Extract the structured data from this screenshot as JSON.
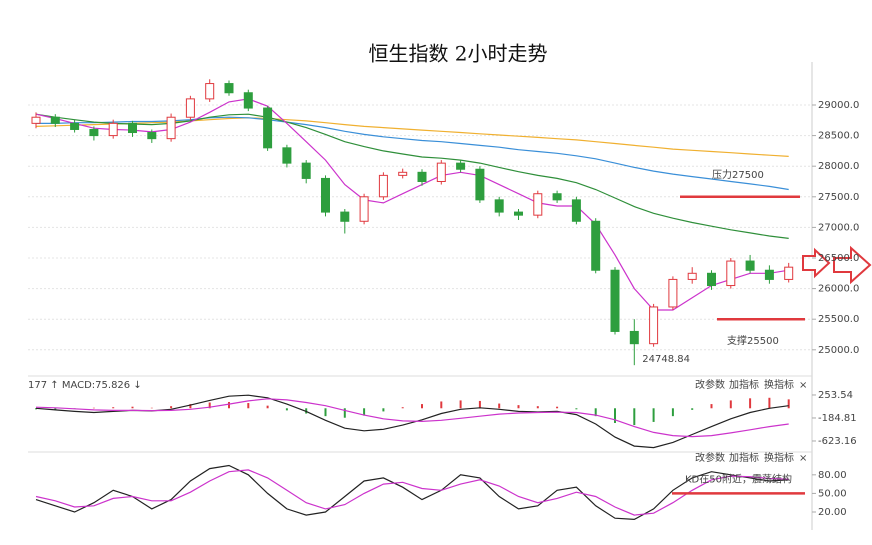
{
  "chart_data": [
    {
      "type": "candlestick",
      "title": "恒生指数 2小时走势",
      "open": [
        28700,
        28800,
        28700,
        28600,
        28500,
        28700,
        28550,
        28450,
        28800,
        29100,
        29350,
        29200,
        28950,
        28300,
        28050,
        27800,
        27250,
        27100,
        27500,
        27850,
        27900,
        27750,
        28050,
        27950,
        27450,
        27250,
        27200,
        27550,
        27450,
        27100,
        26300,
        25300,
        25100,
        25700,
        26150,
        26250,
        26050,
        26450,
        26300,
        26150
      ],
      "high": [
        28880,
        28850,
        28760,
        28650,
        28760,
        28740,
        28600,
        28860,
        29150,
        29420,
        29400,
        29250,
        28980,
        28350,
        28100,
        27850,
        27300,
        27550,
        27900,
        27960,
        27950,
        28100,
        28100,
        28000,
        27500,
        27300,
        27600,
        27600,
        27500,
        27150,
        26350,
        25500,
        25750,
        26200,
        26350,
        26300,
        26500,
        26550,
        26380,
        26420
      ],
      "low": [
        28620,
        28640,
        28550,
        28420,
        28450,
        28480,
        28380,
        28400,
        28750,
        29050,
        29150,
        28900,
        28250,
        27980,
        27720,
        27180,
        26900,
        27050,
        27450,
        27800,
        27680,
        27700,
        27900,
        27400,
        27180,
        27120,
        27150,
        27400,
        27050,
        26250,
        25250,
        24748.84,
        25050,
        25650,
        26080,
        25980,
        26000,
        26250,
        26080,
        26100
      ],
      "close": [
        28800,
        28700,
        28600,
        28500,
        28700,
        28550,
        28450,
        28800,
        29100,
        29350,
        29200,
        28950,
        28300,
        28050,
        27800,
        27250,
        27100,
        27500,
        27850,
        27900,
        27750,
        28050,
        27950,
        27450,
        27250,
        27200,
        27550,
        27450,
        27100,
        26300,
        25300,
        25100,
        25700,
        26150,
        26250,
        26050,
        26450,
        26300,
        26150,
        26350
      ],
      "up_color": "#e0393e",
      "down_color": "#2e9e3e",
      "series": [
        {
          "color": "#f0b030",
          "values": [
            28650,
            28660,
            28670,
            28680,
            28690,
            28700,
            28710,
            28720,
            28740,
            28760,
            28780,
            28790,
            28780,
            28760,
            28740,
            28710,
            28680,
            28650,
            28630,
            28610,
            28590,
            28570,
            28550,
            28530,
            28510,
            28490,
            28470,
            28450,
            28430,
            28400,
            28370,
            28340,
            28310,
            28280,
            28260,
            28240,
            28220,
            28200,
            28180,
            28160
          ]
        },
        {
          "color": "#3a8fd8",
          "values": [
            28700,
            28700,
            28710,
            28710,
            28720,
            28730,
            28730,
            28740,
            28760,
            28790,
            28800,
            28790,
            28760,
            28720,
            28680,
            28630,
            28570,
            28520,
            28480,
            28450,
            28420,
            28400,
            28370,
            28340,
            28310,
            28270,
            28240,
            28210,
            28170,
            28120,
            28050,
            27980,
            27920,
            27870,
            27830,
            27790,
            27750,
            27710,
            27670,
            27620
          ]
        },
        {
          "color": "#2f8f3a",
          "values": [
            28850,
            28800,
            28760,
            28720,
            28700,
            28690,
            28680,
            28700,
            28740,
            28800,
            28840,
            28850,
            28800,
            28720,
            28630,
            28520,
            28400,
            28320,
            28250,
            28200,
            28150,
            28130,
            28100,
            28050,
            27980,
            27910,
            27850,
            27800,
            27730,
            27620,
            27480,
            27340,
            27230,
            27150,
            27080,
            27020,
            26960,
            26910,
            26860,
            26820
          ]
        },
        {
          "color": "#cc33cc",
          "values": [
            28850,
            28780,
            28700,
            28620,
            28600,
            28590,
            28560,
            28600,
            28720,
            28880,
            29050,
            29100,
            28980,
            28700,
            28400,
            28100,
            27700,
            27450,
            27400,
            27550,
            27700,
            27850,
            27900,
            27850,
            27700,
            27550,
            27400,
            27350,
            27350,
            27050,
            26550,
            26000,
            25650,
            25650,
            25850,
            26050,
            26150,
            26250,
            26250,
            26300
          ]
        }
      ],
      "ylim": [
        24670,
        29490
      ],
      "yticks": [
        {
          "value": 29000,
          "label": "29000.0"
        },
        {
          "value": 28500,
          "label": "28500.0"
        },
        {
          "value": 28000,
          "label": "28000.0"
        },
        {
          "value": 27500,
          "label": "27500.0"
        },
        {
          "value": 27000,
          "label": "27000.0"
        },
        {
          "value": 26500,
          "label": "26500.0"
        },
        {
          "value": 26000,
          "label": "26000.0"
        },
        {
          "value": 25500,
          "label": "25500.0"
        },
        {
          "value": 25000,
          "label": "25000.0"
        }
      ],
      "grid": true,
      "annotations": [
        {
          "text": "压力27500",
          "value": 27500,
          "color": "#e0393e"
        },
        {
          "text": "支撑25500",
          "value": 25500,
          "color": "#e0393e"
        }
      ]
    },
    {
      "type": "macd",
      "header": "177 ↑ MACD:75.826 ↓",
      "toolbar": [
        "改参数",
        "加指标",
        "换指标",
        "×"
      ],
      "ylim": [
        -795,
        577
      ],
      "yticks": [
        253.54,
        -184.81,
        -623.16
      ],
      "histogram": {
        "up_color": "#e0393e",
        "down_color": "#2e9e3e",
        "values": [
          -20,
          -30,
          -10,
          10,
          20,
          30,
          10,
          40,
          80,
          110,
          120,
          100,
          50,
          -40,
          -100,
          -150,
          -180,
          -140,
          -60,
          20,
          80,
          130,
          150,
          140,
          90,
          60,
          40,
          30,
          -20,
          -150,
          -280,
          -320,
          -260,
          -150,
          -30,
          80,
          150,
          190,
          200,
          170
        ]
      },
      "series": [
        {
          "color": "#222222",
          "values": [
            0,
            -30,
            -60,
            -80,
            -60,
            -40,
            -50,
            -20,
            60,
            150,
            230,
            250,
            200,
            80,
            -60,
            -230,
            -380,
            -430,
            -400,
            -320,
            -220,
            -100,
            -20,
            10,
            -20,
            -60,
            -70,
            -60,
            -120,
            -300,
            -550,
            -720,
            -750,
            -650,
            -500,
            -350,
            -200,
            -80,
            0,
            50
          ]
        },
        {
          "color": "#cc33cc",
          "values": [
            20,
            10,
            -10,
            -30,
            -40,
            -40,
            -45,
            -40,
            -20,
            20,
            80,
            140,
            180,
            160,
            110,
            50,
            -40,
            -130,
            -200,
            -240,
            -250,
            -230,
            -190,
            -150,
            -110,
            -90,
            -80,
            -75,
            -80,
            -130,
            -220,
            -350,
            -460,
            -520,
            -540,
            -520,
            -470,
            -410,
            -350,
            -300
          ]
        }
      ]
    },
    {
      "type": "kd",
      "toolbar": [
        "改参数",
        "加指标",
        "换指标",
        "×"
      ],
      "ylim": [
        -1,
        112
      ],
      "yticks": [
        {
          "value": 80,
          "label": "80.00"
        },
        {
          "value": 50,
          "label": "50.00"
        },
        {
          "value": 20,
          "label": "20.00"
        }
      ],
      "series": [
        {
          "color": "#222222",
          "values": [
            40,
            30,
            20,
            35,
            55,
            45,
            25,
            40,
            70,
            90,
            95,
            80,
            50,
            25,
            15,
            20,
            45,
            70,
            75,
            60,
            40,
            55,
            80,
            75,
            45,
            25,
            30,
            55,
            60,
            30,
            10,
            8,
            25,
            55,
            75,
            85,
            80,
            75,
            70,
            72
          ]
        },
        {
          "color": "#cc33cc",
          "values": [
            45,
            38,
            28,
            30,
            42,
            45,
            38,
            38,
            52,
            70,
            85,
            88,
            75,
            55,
            35,
            25,
            32,
            50,
            65,
            68,
            58,
            55,
            65,
            72,
            62,
            45,
            35,
            42,
            52,
            45,
            28,
            15,
            18,
            35,
            55,
            72,
            78,
            77,
            74,
            73
          ]
        }
      ],
      "annotations": [
        {
          "text": "KD在50附近，震荡结构",
          "value": 50,
          "color": "#e0393e"
        }
      ]
    }
  ]
}
